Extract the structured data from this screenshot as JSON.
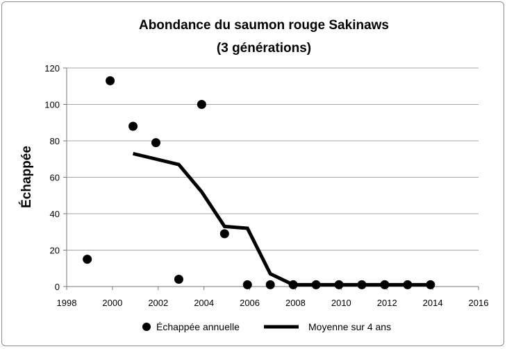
{
  "chart_data": {
    "type": "scatter+line",
    "title": [
      "Abondance du saumon rouge Sakinaws",
      "(3 générations)"
    ],
    "xlabel": "",
    "ylabel": "Échappée",
    "xlim": [
      1998,
      2016
    ],
    "ylim": [
      0,
      120
    ],
    "xticks": [
      "1998",
      "2000",
      "2002",
      "2004",
      "2006",
      "2008",
      "2010",
      "2012",
      "2014",
      "2016"
    ],
    "yticks": [
      "0",
      "20",
      "40",
      "60",
      "80",
      "100",
      "120"
    ],
    "grid": "horizontal",
    "legend_position": "bottom",
    "series": [
      {
        "name": "Échappée annuelle",
        "type": "scatter",
        "color": "#000000",
        "x": [
          1999,
          2000,
          2001,
          2002,
          2003,
          2004,
          2005,
          2006,
          2007,
          2008,
          2009,
          2010,
          2011,
          2012,
          2013,
          2014
        ],
        "y": [
          15,
          113,
          88,
          79,
          4,
          100,
          29,
          1,
          1,
          1,
          1,
          1,
          1,
          1,
          1,
          1
        ]
      },
      {
        "name": "Moyenne sur 4 ans",
        "type": "line",
        "color": "#000000",
        "x": [
          2001,
          2002,
          2003,
          2004,
          2005,
          2006,
          2007,
          2008,
          2009,
          2010,
          2011,
          2012,
          2013,
          2014
        ],
        "y": [
          73,
          70,
          67,
          52,
          33,
          32,
          7,
          1,
          1,
          1,
          1,
          1,
          1,
          1
        ]
      }
    ]
  }
}
